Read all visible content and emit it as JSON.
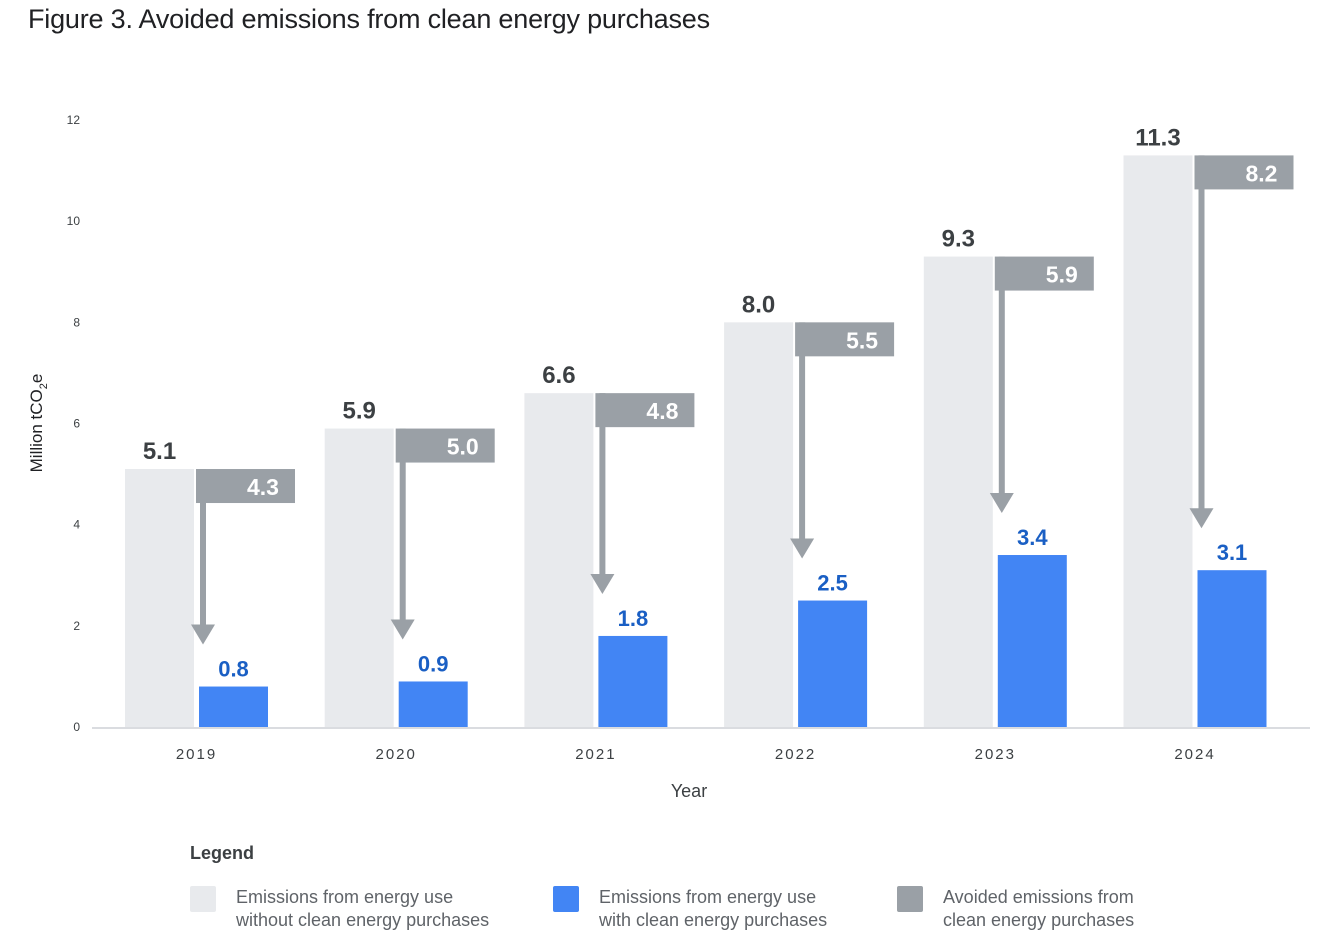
{
  "title": "Figure 3. Avoided emissions from clean energy purchases",
  "legend": {
    "title": "Legend",
    "items": [
      {
        "line1": "Emissions from energy use",
        "line2": "without clean energy purchases",
        "color": "#e8eaed"
      },
      {
        "line1": "Emissions from energy use",
        "line2": "with clean energy purchases",
        "color": "#4285f4"
      },
      {
        "line1": "Avoided emissions from",
        "line2": "clean energy purchases",
        "color": "#9aa0a6"
      }
    ]
  },
  "chart_data": {
    "type": "bar",
    "categories": [
      "2019",
      "2020",
      "2021",
      "2022",
      "2023",
      "2024"
    ],
    "series": [
      {
        "name": "Emissions from energy use without clean energy purchases",
        "values": [
          5.1,
          5.9,
          6.6,
          8.0,
          9.3,
          11.3
        ],
        "labels": [
          "5.1",
          "5.9",
          "6.6",
          "8.0",
          "9.3",
          "11.3"
        ],
        "color": "#e8eaed"
      },
      {
        "name": "Emissions from energy use with clean energy purchases",
        "values": [
          0.8,
          0.9,
          1.8,
          2.5,
          3.4,
          3.1
        ],
        "labels": [
          "0.8",
          "0.9",
          "1.8",
          "2.5",
          "3.4",
          "3.1"
        ],
        "color": "#4285f4"
      }
    ],
    "avoided": {
      "name": "Avoided emissions from clean energy purchases",
      "values": [
        4.3,
        5.0,
        4.8,
        5.5,
        5.9,
        8.2
      ],
      "labels": [
        "4.3",
        "5.0",
        "4.8",
        "5.5",
        "5.9",
        "8.2"
      ],
      "color": "#9aa0a6"
    },
    "xlabel": "Year",
    "ylabel": "Million tCO",
    "ylabel_sub": "2",
    "ylabel_suffix": "e",
    "ylim": [
      0,
      12
    ],
    "yticks": [
      "0",
      "2",
      "4",
      "6",
      "8",
      "10",
      "12"
    ],
    "grid": false
  }
}
